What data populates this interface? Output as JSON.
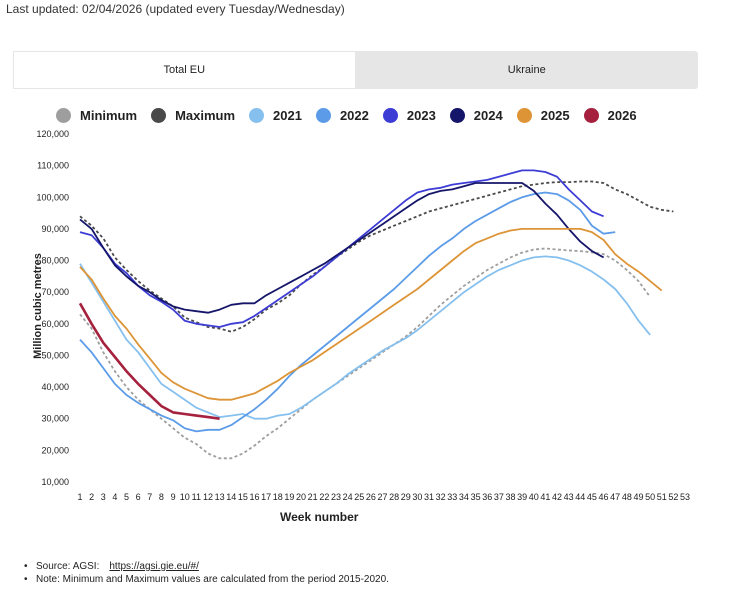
{
  "header": {
    "last_updated": "Last updated: 02/04/2026   (updated every Tuesday/Wednesday)"
  },
  "tabs": [
    {
      "label": "Total EU",
      "active": true
    },
    {
      "label": "Ukraine",
      "active": false
    }
  ],
  "notes": {
    "source_label": "Source: AGSI:",
    "source_link": "https://agsi.gie.eu/#/",
    "note": "Note: Minimum and Maximum values are calculated from the period 2015-2020."
  },
  "chart_data": {
    "type": "line",
    "title": "",
    "xlabel": "Week number",
    "ylabel": "Million cubic metres",
    "ylim": [
      10000,
      120000
    ],
    "yticks": [
      10000,
      20000,
      30000,
      40000,
      50000,
      60000,
      70000,
      80000,
      90000,
      100000,
      110000,
      120000
    ],
    "ytick_labels": [
      "10,000",
      "20,000",
      "30,000",
      "40,000",
      "50,000",
      "60,000",
      "70,000",
      "80,000",
      "90,000",
      "100,000",
      "110,000",
      "120,000"
    ],
    "x": [
      1,
      2,
      3,
      4,
      5,
      6,
      7,
      8,
      9,
      10,
      11,
      12,
      13,
      14,
      15,
      16,
      17,
      18,
      19,
      20,
      21,
      22,
      23,
      24,
      25,
      26,
      27,
      28,
      29,
      30,
      31,
      32,
      33,
      34,
      35,
      36,
      37,
      38,
      39,
      40,
      41,
      42,
      43,
      44,
      45,
      46,
      47,
      48,
      49,
      50,
      51,
      52,
      53
    ],
    "series": [
      {
        "name": "Minimum",
        "color": "#9e9e9e",
        "dash": true,
        "values": [
          63000,
          58500,
          51000,
          45000,
          40000,
          36000,
          33000,
          30000,
          27000,
          24000,
          22000,
          19000,
          17500,
          17500,
          19000,
          21500,
          24500,
          27000,
          30000,
          33000,
          36000,
          38500,
          41000,
          43500,
          46000,
          48500,
          51000,
          53500,
          56000,
          59000,
          62500,
          66000,
          69000,
          72000,
          74500,
          77000,
          79000,
          81000,
          82500,
          83500,
          83800,
          83500,
          83200,
          83000,
          82600,
          82000,
          80000,
          77000,
          73500,
          68500,
          null,
          null,
          null
        ]
      },
      {
        "name": "Maximum",
        "color": "#4a4a4a",
        "dash": true,
        "values": [
          94000,
          91000,
          87000,
          81000,
          77000,
          73500,
          70500,
          68000,
          65500,
          62000,
          60500,
          59000,
          58500,
          57500,
          59000,
          61500,
          64500,
          66500,
          69000,
          72500,
          75500,
          78000,
          81000,
          83500,
          86000,
          88000,
          89500,
          91000,
          92500,
          94000,
          95500,
          96500,
          97500,
          98500,
          99500,
          100500,
          101500,
          102500,
          103500,
          104000,
          104500,
          104800,
          104800,
          105000,
          105000,
          104500,
          102500,
          101000,
          99000,
          97000,
          96000,
          95500,
          null
        ]
      },
      {
        "name": "2021",
        "color": "#86c0ee",
        "dash": false,
        "values": [
          79000,
          73000,
          67000,
          61000,
          55000,
          51000,
          46000,
          41000,
          38500,
          36000,
          33500,
          32000,
          30500,
          31000,
          31500,
          30000,
          30000,
          31000,
          31500,
          33500,
          36000,
          38500,
          41000,
          44000,
          46500,
          49000,
          51500,
          53500,
          55500,
          58000,
          61000,
          64000,
          67000,
          70000,
          72500,
          75000,
          77000,
          78500,
          80000,
          81000,
          81300,
          81000,
          80000,
          78500,
          76500,
          74000,
          71000,
          66500,
          61000,
          56500,
          null,
          null,
          null
        ]
      },
      {
        "name": "2022",
        "color": "#5b9be8",
        "dash": false,
        "values": [
          55000,
          51000,
          46000,
          41000,
          37500,
          35000,
          33000,
          31000,
          29500,
          27000,
          26000,
          26500,
          26500,
          28000,
          30500,
          33000,
          36000,
          39500,
          43500,
          47000,
          50000,
          53000,
          56000,
          59000,
          62000,
          65000,
          68000,
          71000,
          74500,
          78000,
          81500,
          84500,
          87000,
          90000,
          92500,
          94500,
          96500,
          98500,
          100000,
          101000,
          101500,
          101000,
          99000,
          96000,
          91000,
          88500,
          89000,
          null,
          null,
          null,
          null,
          null,
          null
        ]
      },
      {
        "name": "2023",
        "color": "#3d3dd6",
        "dash": false,
        "values": [
          89000,
          88000,
          84000,
          79000,
          76000,
          72000,
          69000,
          67000,
          64500,
          61000,
          60000,
          59500,
          59000,
          60000,
          60500,
          62500,
          65000,
          67500,
          70000,
          72500,
          75000,
          78000,
          81000,
          84000,
          87000,
          90000,
          93000,
          96000,
          99000,
          101500,
          102500,
          103000,
          104000,
          104500,
          105000,
          105500,
          106500,
          107500,
          108500,
          108500,
          108000,
          106500,
          102500,
          99000,
          95500,
          94000,
          null,
          null,
          null,
          null,
          null,
          null,
          null
        ]
      },
      {
        "name": "2024",
        "color": "#15166a",
        "dash": false,
        "values": [
          93000,
          90000,
          84000,
          78500,
          75000,
          72000,
          70000,
          67500,
          65500,
          64500,
          64000,
          63500,
          64500,
          66000,
          66500,
          66500,
          69000,
          71000,
          73000,
          75000,
          77000,
          79000,
          81500,
          84000,
          86500,
          89000,
          91500,
          94000,
          96500,
          99000,
          101000,
          102000,
          102500,
          103500,
          104500,
          104500,
          104500,
          104500,
          104500,
          102000,
          98000,
          94500,
          90000,
          86000,
          83000,
          81000,
          null,
          null,
          null,
          null,
          null,
          null,
          null
        ]
      },
      {
        "name": "2025",
        "color": "#dd9436",
        "dash": false,
        "values": [
          78000,
          74000,
          68000,
          62500,
          58500,
          53500,
          49000,
          44500,
          41500,
          39500,
          38000,
          36500,
          36000,
          36000,
          37000,
          38000,
          40000,
          42000,
          44500,
          46500,
          48500,
          51000,
          53500,
          56000,
          58500,
          61000,
          63500,
          66000,
          68500,
          71000,
          74000,
          77000,
          80000,
          83000,
          85500,
          87000,
          88500,
          89500,
          90000,
          90000,
          90000,
          90000,
          90000,
          90000,
          89000,
          86500,
          82000,
          79000,
          76500,
          73500,
          70500,
          null,
          null
        ]
      },
      {
        "name": "2026",
        "color": "#a5213d",
        "dash": false,
        "values": [
          66500,
          60000,
          54000,
          49500,
          45000,
          41000,
          37500,
          34000,
          32000,
          31500,
          31000,
          30500,
          30000,
          null,
          null,
          null,
          null,
          null,
          null,
          null,
          null,
          null,
          null,
          null,
          null,
          null,
          null,
          null,
          null,
          null,
          null,
          null,
          null,
          null,
          null,
          null,
          null,
          null,
          null,
          null,
          null,
          null,
          null,
          null,
          null,
          null,
          null,
          null,
          null,
          null,
          null,
          null,
          null
        ]
      }
    ]
  }
}
